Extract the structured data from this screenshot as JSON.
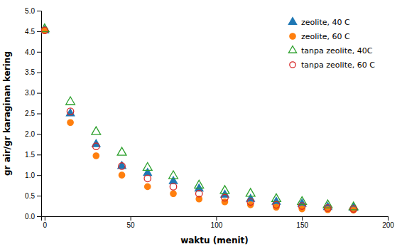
{
  "chart_data": {
    "type": "scatter",
    "xlabel": "waktu (menit)",
    "ylabel": "gr air/gr karaginan kering",
    "x": [
      0,
      15,
      30,
      45,
      60,
      75,
      90,
      105,
      120,
      135,
      150,
      165,
      180
    ],
    "xlim": [
      -2,
      200
    ],
    "ylim": [
      0,
      5
    ],
    "xticks": [
      0,
      50,
      100,
      150,
      200
    ],
    "yticks": [
      {
        "value": 0,
        "label": "0.0"
      },
      0.5,
      {
        "value": 1,
        "label": "1.0"
      },
      1.5,
      {
        "value": 2,
        "label": "2.0"
      },
      2.5,
      {
        "value": 3,
        "label": "3.0"
      },
      3.5,
      {
        "value": 4,
        "label": "4.0"
      },
      4.5,
      {
        "value": 5,
        "label": "5.0"
      }
    ],
    "legend": "upper right",
    "series": [
      {
        "name": "zeolite, 40 C",
        "marker": "triangle",
        "values": [
          4.52,
          2.5,
          1.75,
          1.22,
          1.05,
          0.85,
          0.67,
          0.52,
          0.42,
          0.35,
          0.3,
          0.22,
          0.2
        ]
      },
      {
        "name": "zeolite, 60 C",
        "marker": "circle",
        "values": [
          4.52,
          2.28,
          1.47,
          1.0,
          0.72,
          0.55,
          0.42,
          0.35,
          0.28,
          0.22,
          0.18,
          0.16,
          0.15
        ]
      },
      {
        "name": "tanpa zeolite, 40C",
        "marker": "triangle-open",
        "values": [
          4.55,
          2.78,
          2.05,
          1.55,
          1.18,
          0.98,
          0.75,
          0.62,
          0.55,
          0.42,
          0.35,
          0.27,
          0.22
        ]
      },
      {
        "name": "tanpa zeolite, 60 C",
        "marker": "circle-open",
        "values": [
          4.52,
          2.55,
          1.7,
          1.22,
          0.92,
          0.72,
          0.55,
          0.45,
          0.35,
          0.28,
          0.25,
          0.2,
          0.18
        ]
      }
    ]
  }
}
